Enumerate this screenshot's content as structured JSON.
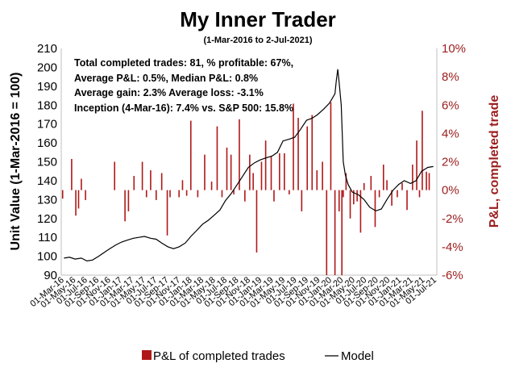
{
  "chart_data": {
    "type": "bar+line",
    "title": "My Inner Trader",
    "subtitle": "(1-Mar-2016 to 2-Jul-2021)",
    "ylabel_left": "Unit Value (1-Mar-2016 = 100)",
    "ylabel_right": "P&L, completed trade",
    "ylim_left": [
      90,
      210
    ],
    "ylim_right": [
      -6,
      10
    ],
    "yticks_left": [
      90,
      100,
      110,
      120,
      130,
      140,
      150,
      160,
      170,
      180,
      190,
      200,
      210
    ],
    "yticks_right": [
      "-6%",
      "-4%",
      "-2%",
      "0%",
      "2%",
      "4%",
      "6%",
      "8%",
      "10%"
    ],
    "x_tick_labels": [
      "01-Mar-16",
      "01-May-16",
      "01-Jul-16",
      "01-Sep-16",
      "01-Nov-16",
      "01-Jan-17",
      "01-Mar-17",
      "01-May-17",
      "01-Jul-17",
      "01-Sep-17",
      "01-Nov-17",
      "01-Jan-18",
      "01-Mar-18",
      "01-May-18",
      "01-Jul-18",
      "01-Sep-18",
      "01-Nov-18",
      "01-Jan-19",
      "01-Mar-19",
      "01-May-19",
      "01-Jul-19",
      "01-Sep-19",
      "01-Nov-19",
      "01-Jan-20",
      "01-Mar-20",
      "01-May-20",
      "01-Jul-20",
      "01-Sep-20",
      "01-Nov-20",
      "01-Jan-21",
      "01-Mar-21",
      "01-May-21",
      "01-Jul-21"
    ],
    "annotations": [
      "Total completed trades: 81, % profitable: 67%,",
      "Average P&L: 0.5%, Median P&L: 0.8%",
      "Average gain: 2.3% Average loss: -3.1%",
      "Inception (4-Mar-16): 7.4% vs. S&P 500: 15.8%"
    ],
    "legend": {
      "placement": "bottom",
      "bar_label": "P&L of completed trades",
      "line_label": "Model"
    },
    "colors": {
      "bars": "#b01818",
      "line": "#000000",
      "right_axis": "#9b1c1c"
    },
    "series_line": {
      "name": "Model",
      "x": [
        2016.17,
        2016.25,
        2016.33,
        2016.42,
        2016.5,
        2016.58,
        2016.67,
        2016.75,
        2016.83,
        2016.92,
        2017.0,
        2017.08,
        2017.17,
        2017.25,
        2017.33,
        2017.42,
        2017.5,
        2017.58,
        2017.67,
        2017.75,
        2017.83,
        2017.92,
        2018.0,
        2018.08,
        2018.17,
        2018.25,
        2018.33,
        2018.42,
        2018.5,
        2018.58,
        2018.67,
        2018.75,
        2018.83,
        2018.92,
        2019.0,
        2019.08,
        2019.17,
        2019.25,
        2019.33,
        2019.42,
        2019.5,
        2019.58,
        2019.67,
        2019.75,
        2019.83,
        2019.92,
        2020.0,
        2020.04,
        2020.08,
        2020.1,
        2020.12,
        2020.14,
        2020.17,
        2020.2,
        2020.23,
        2020.27,
        2020.33,
        2020.42,
        2020.5,
        2020.58,
        2020.67,
        2020.75,
        2020.83,
        2020.92,
        2021.0,
        2021.08,
        2021.17,
        2021.25,
        2021.33,
        2021.42,
        2021.5
      ],
      "y": [
        99,
        99.5,
        98.5,
        99,
        97.5,
        98,
        100,
        102,
        104,
        106,
        107.5,
        108.5,
        109.5,
        110,
        110.5,
        109.5,
        109,
        107,
        105,
        104,
        105,
        107,
        110.5,
        113.5,
        117,
        119,
        121.5,
        124.5,
        129.5,
        133,
        138,
        142.5,
        147,
        149.5,
        151,
        152,
        153,
        155,
        161,
        162,
        163,
        167,
        172,
        173,
        175,
        178,
        181,
        183.5,
        186,
        193,
        199,
        192,
        180,
        150,
        143,
        138,
        134,
        132.5,
        130,
        126,
        124,
        125,
        130,
        135,
        138,
        140,
        138.5,
        140,
        145,
        147,
        147.5
      ]
    },
    "series_bars": {
      "name": "P&L of completed trades",
      "x": [
        2016.15,
        2016.28,
        2016.34,
        2016.38,
        2016.42,
        2016.48,
        2016.9,
        2017.05,
        2017.1,
        2017.18,
        2017.3,
        2017.36,
        2017.42,
        2017.5,
        2017.58,
        2017.66,
        2017.7,
        2017.83,
        2017.88,
        2017.94,
        2018.0,
        2018.1,
        2018.2,
        2018.3,
        2018.38,
        2018.45,
        2018.52,
        2018.58,
        2018.62,
        2018.7,
        2018.78,
        2018.85,
        2018.9,
        2018.95,
        2019.02,
        2019.08,
        2019.16,
        2019.2,
        2019.28,
        2019.35,
        2019.42,
        2019.48,
        2019.55,
        2019.6,
        2019.68,
        2019.75,
        2019.82,
        2019.9,
        2019.96,
        2020.02,
        2020.08,
        2020.14,
        2020.18,
        2020.2,
        2020.24,
        2020.3,
        2020.35,
        2020.4,
        2020.45,
        2020.5,
        2020.6,
        2020.66,
        2020.72,
        2020.78,
        2020.83,
        2020.9,
        2020.98,
        2021.05,
        2021.12,
        2021.2,
        2021.26,
        2021.3,
        2021.34,
        2021.4,
        2021.44
      ],
      "y": [
        -0.6,
        2.2,
        -1.8,
        -1.3,
        0.8,
        -0.7,
        2,
        -2.2,
        -1.5,
        1,
        2,
        -0.5,
        1.4,
        -0.7,
        1.2,
        -3.2,
        -0.5,
        -0.5,
        0.7,
        -0.4,
        4.9,
        -0.5,
        2.5,
        0.6,
        4.5,
        -0.5,
        3,
        2.5,
        -0.3,
        5,
        -0.8,
        2.5,
        1.2,
        -4.4,
        2,
        3.5,
        2.4,
        -0.8,
        2.6,
        2.6,
        -0.3,
        6.1,
        5.1,
        -1.5,
        4.5,
        5.3,
        1.4,
        2,
        -6,
        6.2,
        -6,
        -1.5,
        -6,
        -0.5,
        1.2,
        -2,
        -1,
        -0.8,
        -3,
        0.5,
        1,
        -2.6,
        -0.5,
        1.8,
        0.7,
        -1.1,
        -0.5,
        0.5,
        -1.4,
        1.8,
        3.5,
        -0.5,
        5.6,
        1.3,
        1.2
      ]
    }
  }
}
